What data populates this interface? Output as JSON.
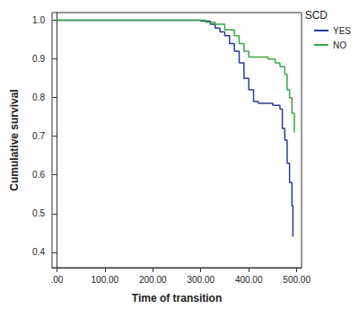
{
  "chart_data": {
    "type": "line",
    "line_style": "step",
    "marker": "none",
    "grid": false,
    "legend": "top-right",
    "legend_title": "SCD",
    "x_label": "Time of transition",
    "y_label": "Cumulative survival",
    "xlim": [
      -10,
      510
    ],
    "xticks": [
      {
        "value": 0,
        "label": ".00"
      },
      {
        "value": 100,
        "label": "100.00"
      },
      {
        "value": 200,
        "label": "200.00"
      },
      {
        "value": 300,
        "label": "300.00"
      },
      {
        "value": 400,
        "label": "400.00"
      },
      {
        "value": 500,
        "label": "500.00"
      }
    ],
    "ylim": [
      0.36,
      1.02
    ],
    "yticks": [
      0.4,
      0.5,
      0.6,
      0.7,
      0.8,
      0.9,
      {
        "value": 1,
        "label": "1.0"
      }
    ],
    "series": [
      {
        "name": "YES",
        "color": "#2b3a98",
        "x": [
          0,
          280,
          300,
          320,
          330,
          340,
          350,
          360,
          370,
          380,
          390,
          400,
          410,
          420,
          450,
          465,
          470,
          475,
          480,
          485,
          490,
          492
        ],
        "values": [
          1.0,
          1.0,
          0.998,
          0.99,
          0.98,
          0.97,
          0.96,
          0.94,
          0.92,
          0.89,
          0.85,
          0.82,
          0.79,
          0.785,
          0.78,
          0.77,
          0.72,
          0.69,
          0.63,
          0.58,
          0.52,
          0.44
        ]
      },
      {
        "name": "NO",
        "color": "#3aa845",
        "x": [
          0,
          300,
          310,
          330,
          350,
          370,
          380,
          390,
          400,
          440,
          455,
          465,
          475,
          480,
          485,
          490,
          495
        ],
        "values": [
          1.0,
          1.0,
          0.995,
          0.99,
          0.975,
          0.96,
          0.94,
          0.92,
          0.905,
          0.9,
          0.89,
          0.88,
          0.86,
          0.82,
          0.8,
          0.76,
          0.71
        ]
      }
    ]
  }
}
